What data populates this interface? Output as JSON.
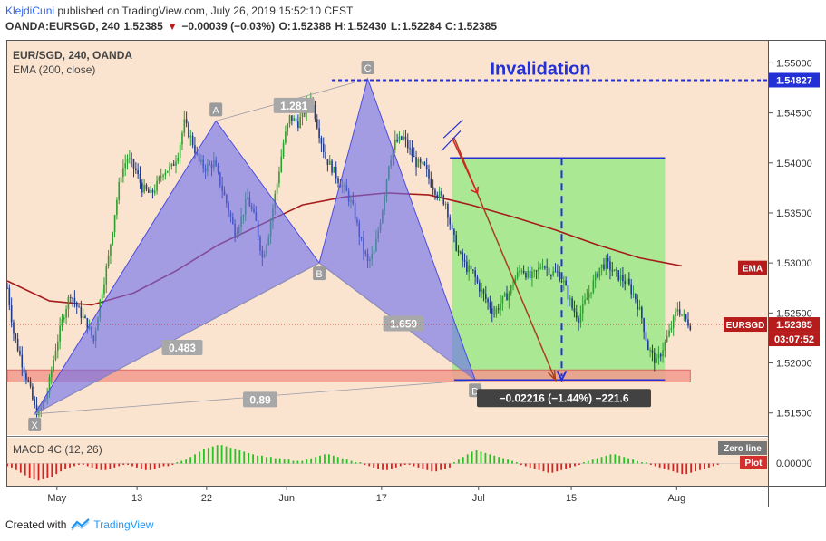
{
  "header": {
    "author": "KlejdiCuni",
    "published": "published on TradingView.com, July 26, 2019 15:52:10 CEST",
    "symbol": "OANDA:EURSGD, 240",
    "last": "1.52385",
    "change": "−0.00039 (−0.03%)",
    "o_label": "O:",
    "o": "1.52388",
    "h_label": "H:",
    "h": "1.52430",
    "l_label": "L:",
    "l": "1.52284",
    "c_label": "C:",
    "c": "1.52385"
  },
  "legend": {
    "series_title": "EUR/SGD, 240, OANDA",
    "ema_title": "EMA (200, close)",
    "macd_title": "MACD 4C (12, 26)"
  },
  "footer": {
    "created_with": "Created with",
    "brand": "TradingView"
  },
  "colors": {
    "background": "#fbe4cf",
    "up_candle": "#2e9e2e",
    "down_candle": "#1f3a8a",
    "ema": "#a51c1c",
    "pattern_fill": "#6a6cf0",
    "projection_fill": "#a6e88f",
    "support_zone": "#f29b8f",
    "invalidation": "#2330d6",
    "macd_up": "#22c322",
    "macd_down": "#d62222"
  },
  "chart_data": {
    "type": "candlestick",
    "symbol": "EUR/SGD",
    "timeframe": "240",
    "ylim": [
      1.5128,
      1.5523
    ],
    "y_ticks": [
      "1.51500",
      "1.52000",
      "1.52500",
      "1.53000",
      "1.53500",
      "1.54000",
      "1.54500",
      "1.55000"
    ],
    "x_ticks": [
      "May",
      "13",
      "22",
      "Jun",
      "17",
      "Jul",
      "15",
      "Aug"
    ],
    "price_path": [
      [
        0,
        1.5275
      ],
      [
        3,
        1.523
      ],
      [
        7,
        1.52
      ],
      [
        10,
        1.518
      ],
      [
        13,
        1.5155
      ],
      [
        15,
        1.5149
      ],
      [
        19,
        1.517
      ],
      [
        23,
        1.5215
      ],
      [
        27,
        1.525
      ],
      [
        30,
        1.527
      ],
      [
        34,
        1.5252
      ],
      [
        38,
        1.5238
      ],
      [
        41,
        1.5222
      ],
      [
        44,
        1.5262
      ],
      [
        48,
        1.5305
      ],
      [
        51,
        1.535
      ],
      [
        54,
        1.539
      ],
      [
        57,
        1.5405
      ],
      [
        61,
        1.5392
      ],
      [
        64,
        1.5375
      ],
      [
        68,
        1.5368
      ],
      [
        71,
        1.5378
      ],
      [
        74,
        1.5392
      ],
      [
        78,
        1.5395
      ],
      [
        81,
        1.541
      ],
      [
        84,
        1.544
      ],
      [
        88,
        1.542
      ],
      [
        91,
        1.54
      ],
      [
        94,
        1.5395
      ],
      [
        98,
        1.54
      ],
      [
        101,
        1.538
      ],
      [
        104,
        1.536
      ],
      [
        108,
        1.533
      ],
      [
        111,
        1.5345
      ],
      [
        114,
        1.5365
      ],
      [
        118,
        1.534
      ],
      [
        121,
        1.5305
      ],
      [
        124,
        1.533
      ],
      [
        128,
        1.538
      ],
      [
        131,
        1.542
      ],
      [
        134,
        1.5445
      ],
      [
        138,
        1.544
      ],
      [
        141,
        1.5452
      ],
      [
        144,
        1.5466
      ],
      [
        148,
        1.543
      ],
      [
        151,
        1.5405
      ],
      [
        154,
        1.5395
      ],
      [
        158,
        1.538
      ],
      [
        161,
        1.537
      ],
      [
        164,
        1.5355
      ],
      [
        168,
        1.532
      ],
      [
        171,
        1.53
      ],
      [
        174,
        1.531
      ],
      [
        178,
        1.5355
      ],
      [
        181,
        1.54
      ],
      [
        184,
        1.542
      ],
      [
        188,
        1.5425
      ],
      [
        191,
        1.5412
      ],
      [
        194,
        1.54
      ],
      [
        198,
        1.5395
      ],
      [
        201,
        1.538
      ],
      [
        204,
        1.537
      ],
      [
        208,
        1.536
      ],
      [
        211,
        1.533
      ],
      [
        214,
        1.531
      ],
      [
        218,
        1.5295
      ],
      [
        221,
        1.529
      ],
      [
        224,
        1.5275
      ],
      [
        228,
        1.526
      ],
      [
        231,
        1.525
      ],
      [
        234,
        1.526
      ],
      [
        238,
        1.527
      ],
      [
        241,
        1.5285
      ],
      [
        244,
        1.5295
      ],
      [
        248,
        1.5285
      ],
      [
        251,
        1.529
      ],
      [
        254,
        1.53
      ],
      [
        258,
        1.529
      ],
      [
        261,
        1.529
      ],
      [
        264,
        1.528
      ],
      [
        268,
        1.5255
      ],
      [
        271,
        1.5245
      ],
      [
        274,
        1.526
      ],
      [
        278,
        1.528
      ],
      [
        281,
        1.5295
      ],
      [
        284,
        1.53
      ],
      [
        288,
        1.529
      ],
      [
        291,
        1.5285
      ],
      [
        294,
        1.528
      ],
      [
        298,
        1.5265
      ],
      [
        301,
        1.5245
      ],
      [
        304,
        1.5215
      ],
      [
        308,
        1.52
      ],
      [
        311,
        1.5215
      ],
      [
        314,
        1.523
      ],
      [
        318,
        1.5255
      ],
      [
        321,
        1.5245
      ],
      [
        324,
        1.5238
      ]
    ],
    "ema_line": [
      [
        0,
        1.5282
      ],
      [
        20,
        1.5262
      ],
      [
        40,
        1.5258
      ],
      [
        60,
        1.527
      ],
      [
        80,
        1.5292
      ],
      [
        100,
        1.5318
      ],
      [
        120,
        1.5338
      ],
      [
        140,
        1.5358
      ],
      [
        160,
        1.5366
      ],
      [
        180,
        1.537
      ],
      [
        200,
        1.5368
      ],
      [
        220,
        1.5358
      ],
      [
        240,
        1.5346
      ],
      [
        260,
        1.5333
      ],
      [
        280,
        1.5318
      ],
      [
        300,
        1.5305
      ],
      [
        320,
        1.5297
      ]
    ],
    "price_tags": [
      {
        "label": "1.54827",
        "value": 1.54827
      },
      {
        "label": "1.52385",
        "value": 1.52385
      }
    ],
    "axis_labels": [
      {
        "name": "EMA",
        "value": 1.5295
      },
      {
        "name": "EURSGD",
        "value": 1.52385
      }
    ],
    "countdown": "03:07:52",
    "pattern_points": [
      {
        "label": "X",
        "bar": 13,
        "price": 1.5149
      },
      {
        "label": "A",
        "bar": 99,
        "price": 1.5442
      },
      {
        "label": "B",
        "bar": 148,
        "price": 1.53
      },
      {
        "label": "C",
        "bar": 171,
        "price": 1.5484
      },
      {
        "label": "D",
        "bar": 222,
        "price": 1.5183
      }
    ],
    "ratios": [
      {
        "label": "1.281",
        "bar": 136,
        "price": 1.5457
      },
      {
        "label": "0.483",
        "bar": 83,
        "price": 1.5215
      },
      {
        "label": "1.659",
        "bar": 188,
        "price": 1.5239
      },
      {
        "label": "0.89",
        "bar": 120,
        "price": 1.5163
      }
    ],
    "annotations": {
      "invalidation_label": "Invalidation",
      "invalidation_price": 1.54827,
      "measurement_label": "−0.02216 (−1.44%) −221.6",
      "target_box": {
        "bar_start": 211,
        "bar_end": 312,
        "price_top": 1.5405,
        "price_bottom": 1.5183
      },
      "support_zone": {
        "bar_start": 0,
        "bar_end": 324,
        "price_top": 1.5193,
        "price_bottom": 1.5181
      }
    },
    "macd": {
      "title": "MACD 4C (12, 26)",
      "zero_line_label": "Zero line",
      "plot_label": "Plot",
      "zero_value_label": "0.00000",
      "histogram": [
        -2,
        -3,
        -5,
        -7,
        -9,
        -11,
        -12,
        -13,
        -12,
        -11,
        -10,
        -8,
        -6,
        -4,
        -3,
        -2,
        -1,
        -1,
        -2,
        -3,
        -4,
        -5,
        -5,
        -4,
        -3,
        -2,
        -1,
        -1,
        -2,
        -3,
        -4,
        -5,
        -5,
        -4,
        -3,
        -2,
        -2,
        -1,
        1,
        2,
        3,
        5,
        7,
        9,
        11,
        12,
        13,
        14,
        14,
        13,
        12,
        11,
        10,
        9,
        8,
        7,
        6,
        6,
        5,
        5,
        4,
        4,
        3,
        3,
        2,
        2,
        2,
        3,
        4,
        5,
        6,
        7,
        7,
        6,
        5,
        4,
        3,
        2,
        1,
        1,
        -1,
        -2,
        -3,
        -4,
        -5,
        -5,
        -4,
        -3,
        -2,
        -1,
        -1,
        -2,
        -3,
        -4,
        -5,
        -6,
        -6,
        -5,
        -4,
        -3,
        1,
        3,
        5,
        7,
        9,
        10,
        9,
        8,
        7,
        6,
        5,
        4,
        3,
        2,
        1,
        -1,
        -2,
        -3,
        -4,
        -5,
        -6,
        -7,
        -7,
        -6,
        -5,
        -4,
        -3,
        -2,
        -1,
        1,
        2,
        3,
        4,
        5,
        6,
        7,
        7,
        6,
        5,
        4,
        3,
        2,
        1,
        1,
        -1,
        -2,
        -3,
        -4,
        -5,
        -6,
        -7,
        -8,
        -8,
        -7,
        -6,
        -5,
        -4,
        -3,
        -2,
        -1
      ]
    }
  }
}
